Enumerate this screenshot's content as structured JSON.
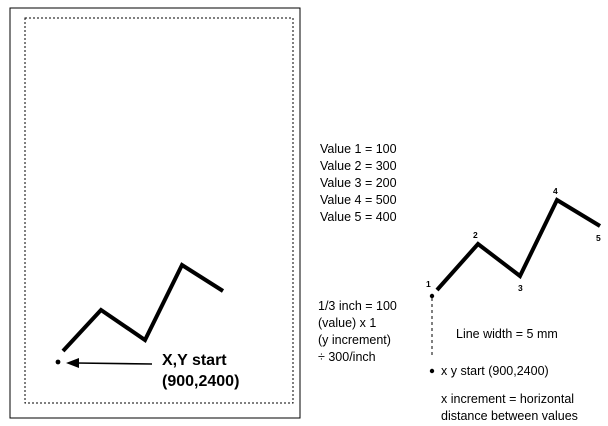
{
  "values_list": [
    "Value 1 = 100",
    "Value 2 = 300",
    "Value 3 = 200",
    "Value 4 = 500",
    "Value 5 = 400"
  ],
  "start_label_line1": "X,Y start",
  "start_label_line2": "(900,2400)",
  "scale_note": [
    "1/3 inch = 100",
    "(value) x 1",
    "(y increment)",
    "÷ 300/inch"
  ],
  "point_numbers": [
    "1",
    "2",
    "3",
    "4",
    "5"
  ],
  "line_width_note": "Line width = 5 mm",
  "xy_start_note": "x y start (900,2400)",
  "x_increment_note": [
    "x increment = horizontal",
    "distance between values"
  ],
  "plotted_values": [
    100,
    300,
    200,
    500,
    400
  ],
  "colors": {
    "ink": "#000000",
    "background": "#ffffff"
  }
}
